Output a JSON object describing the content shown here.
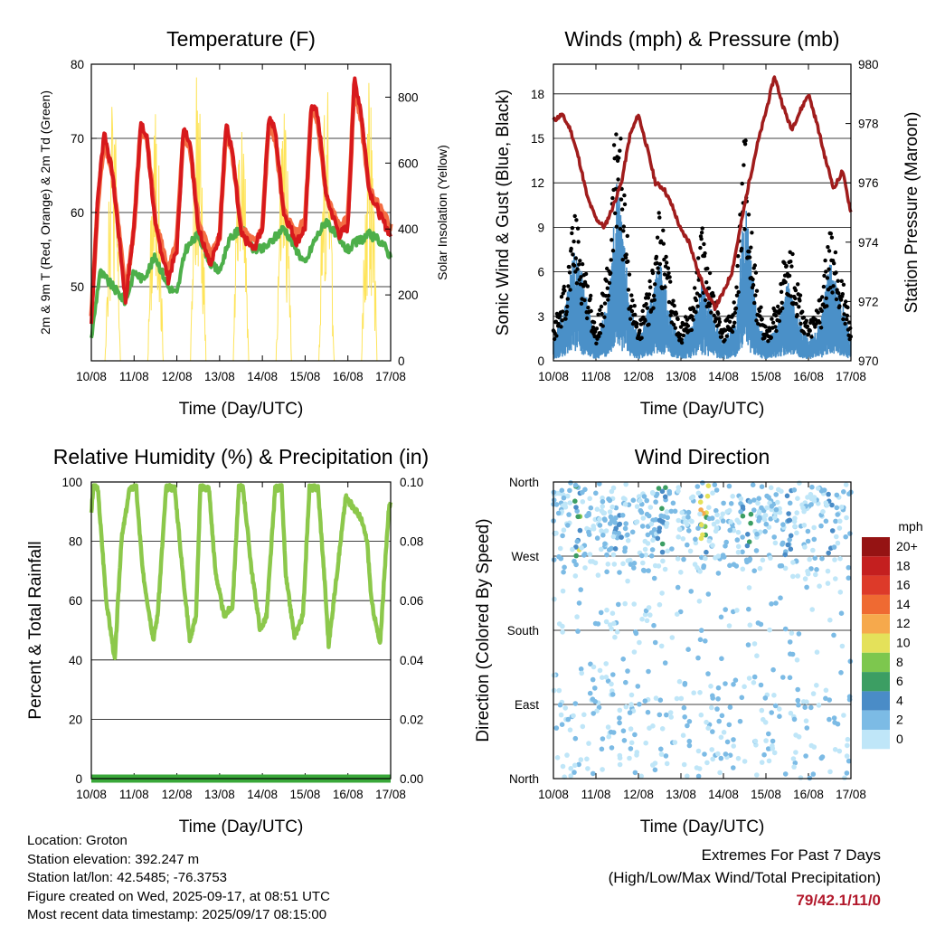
{
  "chart_data": [
    {
      "type": "line",
      "title": "Temperature (F)",
      "xlabel": "Time (Day/UTC)",
      "ylabel": "2m & 9m T (Red, Orange) & 2m Td (Green)",
      "y2label": "Solar Insolation (Yellow)",
      "x_ticks": [
        "10/08",
        "11/08",
        "12/08",
        "13/08",
        "14/08",
        "15/08",
        "16/08",
        "17/08"
      ],
      "ylim": [
        40,
        80
      ],
      "y_ticks": [
        50,
        60,
        70,
        80
      ],
      "y2lim": [
        0,
        900
      ],
      "y2_ticks": [
        0,
        200,
        400,
        600,
        800
      ],
      "colors": {
        "t2m": "#d7191c",
        "t9m": "#f46d43",
        "td2m": "#4daf4a",
        "solar": "#fee45a"
      },
      "series": [
        {
          "name": "2m T",
          "x": [
            0,
            0.15,
            0.3,
            0.5,
            0.8,
            1.0,
            1.15,
            1.3,
            1.5,
            1.8,
            2.0,
            2.15,
            2.3,
            2.5,
            2.8,
            3.0,
            3.15,
            3.3,
            3.5,
            3.8,
            4.0,
            4.15,
            4.3,
            4.5,
            4.8,
            5.0,
            5.15,
            5.3,
            5.5,
            5.8,
            6.0,
            6.15,
            6.3,
            6.5,
            6.8,
            7.0
          ],
          "values": [
            45,
            62,
            71,
            65,
            48,
            58,
            72,
            70,
            58,
            51,
            55,
            71,
            70,
            58,
            53,
            57,
            72,
            68,
            57,
            55,
            58,
            73,
            71,
            60,
            56,
            58,
            75,
            73,
            62,
            57,
            58,
            78,
            74,
            63,
            59,
            57
          ]
        },
        {
          "name": "9m T",
          "x": [
            0,
            0.15,
            0.3,
            0.5,
            0.8,
            1.0,
            1.15,
            1.3,
            1.5,
            1.8,
            2.0,
            2.15,
            2.3,
            2.5,
            2.8,
            3.0,
            3.15,
            3.3,
            3.5,
            3.8,
            4.0,
            4.15,
            4.3,
            4.5,
            4.8,
            5.0,
            5.15,
            5.3,
            5.5,
            5.8,
            6.0,
            6.15,
            6.3,
            6.5,
            6.8,
            7.0
          ],
          "values": [
            46,
            61,
            70,
            65,
            49,
            58,
            71,
            70,
            59,
            52,
            56,
            70,
            69,
            59,
            54,
            57,
            71,
            68,
            58,
            56,
            58,
            72,
            70,
            60,
            57,
            59,
            74,
            72,
            62,
            58,
            59,
            77,
            73,
            63,
            60,
            58
          ]
        },
        {
          "name": "2m Td",
          "x": [
            0,
            0.2,
            0.5,
            0.8,
            1.0,
            1.2,
            1.5,
            1.8,
            2.0,
            2.2,
            2.5,
            2.8,
            3.0,
            3.2,
            3.5,
            3.8,
            4.0,
            4.2,
            4.5,
            4.8,
            5.0,
            5.2,
            5.5,
            5.8,
            6.0,
            6.2,
            6.5,
            6.8,
            7.0
          ],
          "values": [
            43,
            52,
            50,
            48,
            52,
            51,
            54,
            50,
            49,
            55,
            57,
            53,
            52,
            56,
            58,
            55,
            55,
            56,
            58,
            55,
            53,
            56,
            59,
            56,
            55,
            56,
            57,
            56,
            54
          ]
        },
        {
          "name": "Solar Insolation",
          "x": [
            0,
            0.35,
            0.5,
            0.65,
            0.85,
            1.0,
            1.35,
            1.5,
            1.65,
            1.85,
            2.0,
            2.35,
            2.5,
            2.65,
            2.85,
            3.0,
            3.35,
            3.5,
            3.65,
            3.85,
            4.0,
            4.35,
            4.5,
            4.65,
            4.85,
            5.0,
            5.35,
            5.5,
            5.65,
            5.85,
            6.0,
            6.35,
            6.5,
            6.65,
            6.85,
            7.0
          ],
          "values": [
            0,
            0,
            780,
            0,
            0,
            0,
            0,
            720,
            0,
            0,
            0,
            0,
            850,
            0,
            0,
            0,
            0,
            780,
            0,
            0,
            0,
            0,
            760,
            0,
            0,
            0,
            0,
            800,
            0,
            0,
            0,
            0,
            800,
            0,
            0,
            0
          ]
        }
      ]
    },
    {
      "type": "scatter",
      "title": "Winds (mph) & Pressure (mb)",
      "xlabel": "Time (Day/UTC)",
      "ylabel": "Sonic Wind & Gust (Blue, Black)",
      "y2label": "Station Pressure (Maroon)",
      "x_ticks": [
        "10/08",
        "11/08",
        "12/08",
        "13/08",
        "14/08",
        "15/08",
        "16/08",
        "17/08"
      ],
      "ylim": [
        0,
        20
      ],
      "y_ticks": [
        0,
        3,
        6,
        9,
        12,
        15,
        18
      ],
      "y2lim": [
        970,
        980
      ],
      "y2_ticks": [
        970,
        972,
        974,
        976,
        978,
        980
      ],
      "colors": {
        "wind": "#4a90c8",
        "gust": "#000000",
        "pressure": "#a01c1c"
      },
      "series": [
        {
          "name": "Sonic Wind",
          "x": [
            0,
            0.3,
            0.5,
            0.8,
            1.0,
            1.3,
            1.5,
            1.8,
            2.0,
            2.3,
            2.5,
            2.8,
            3.0,
            3.3,
            3.5,
            3.8,
            4.0,
            4.3,
            4.5,
            4.8,
            5.0,
            5.3,
            5.5,
            5.8,
            6.0,
            6.3,
            6.5,
            6.8,
            7.0
          ],
          "values": [
            1,
            3,
            6,
            3,
            1,
            3,
            9,
            3,
            1,
            3,
            5,
            2,
            1,
            2,
            4,
            2,
            1,
            2,
            8,
            2,
            1,
            2,
            4,
            2,
            1,
            2,
            5,
            3,
            1
          ]
        },
        {
          "name": "Gust",
          "x": [
            0,
            0.3,
            0.5,
            0.8,
            1.0,
            1.3,
            1.5,
            1.8,
            2.0,
            2.3,
            2.5,
            2.8,
            3.0,
            3.3,
            3.5,
            3.8,
            4.0,
            4.3,
            4.5,
            4.8,
            5.0,
            5.3,
            5.5,
            5.8,
            6.0,
            6.3,
            6.5,
            6.8,
            7.0
          ],
          "values": [
            2,
            5,
            9,
            5,
            2,
            6,
            17,
            5,
            2,
            5,
            9,
            4,
            2,
            4,
            8,
            4,
            2,
            4,
            14,
            4,
            2,
            4,
            8,
            4,
            2,
            4,
            8,
            5,
            2
          ]
        },
        {
          "name": "Station Pressure",
          "x": [
            0,
            0.2,
            0.4,
            0.6,
            0.8,
            1.0,
            1.2,
            1.4,
            1.6,
            1.8,
            2.0,
            2.2,
            2.4,
            2.6,
            2.8,
            3.0,
            3.2,
            3.4,
            3.6,
            3.8,
            4.0,
            4.2,
            4.4,
            4.6,
            4.8,
            5.0,
            5.2,
            5.4,
            5.6,
            5.8,
            6.0,
            6.2,
            6.4,
            6.6,
            6.8,
            7.0
          ],
          "values": [
            978.1,
            978.3,
            977.8,
            976.8,
            975.5,
            974.8,
            974.5,
            975.2,
            976.0,
            977.6,
            978.3,
            977.2,
            976.0,
            975.8,
            975.2,
            974.4,
            974.0,
            973.0,
            972.3,
            971.8,
            972.3,
            973.0,
            974.5,
            976.0,
            977.3,
            978.4,
            979.6,
            978.6,
            977.8,
            978.4,
            979.0,
            978.0,
            976.8,
            975.8,
            976.4,
            975.0
          ]
        }
      ]
    },
    {
      "type": "line",
      "title": "Relative Humidity (%) & Precipitation (in)",
      "xlabel": "Time (Day/UTC)",
      "ylabel": "Percent & Total Rainfall",
      "x_ticks": [
        "10/08",
        "11/08",
        "12/08",
        "13/08",
        "14/08",
        "15/08",
        "16/08",
        "17/08"
      ],
      "ylim": [
        0,
        100
      ],
      "y_ticks": [
        0,
        20,
        40,
        60,
        80,
        100
      ],
      "y2lim": [
        0,
        0.1
      ],
      "y2_ticks": [
        "0.00",
        "0.02",
        "0.04",
        "0.06",
        "0.08",
        "0.10"
      ],
      "colors": {
        "rh": "#8cc84b",
        "precip": "#3aa83a"
      },
      "series": [
        {
          "name": "Relative Humidity",
          "x": [
            0,
            0.05,
            0.15,
            0.35,
            0.55,
            0.7,
            0.9,
            1.05,
            1.2,
            1.45,
            1.55,
            1.75,
            1.95,
            2.1,
            2.3,
            2.45,
            2.55,
            2.75,
            2.9,
            3.1,
            3.3,
            3.45,
            3.55,
            3.75,
            3.95,
            4.1,
            4.3,
            4.45,
            4.55,
            4.75,
            4.95,
            5.1,
            5.3,
            5.45,
            5.55,
            5.75,
            5.95,
            6.1,
            6.3,
            6.45,
            6.55,
            6.75,
            6.95,
            7.0
          ],
          "values": [
            90,
            98,
            98,
            60,
            40,
            80,
            98,
            98,
            70,
            47,
            55,
            98,
            98,
            75,
            47,
            55,
            98,
            98,
            70,
            55,
            58,
            98,
            98,
            70,
            50,
            55,
            98,
            98,
            68,
            48,
            55,
            98,
            98,
            68,
            45,
            70,
            95,
            92,
            88,
            80,
            60,
            45,
            90,
            94
          ]
        },
        {
          "name": "Precipitation",
          "x": [
            0,
            7
          ],
          "values": [
            0,
            0
          ]
        }
      ]
    },
    {
      "type": "scatter",
      "title": "Wind Direction",
      "xlabel": "Time (Day/UTC)",
      "ylabel": "Direction (Colored By Speed)",
      "x_ticks": [
        "10/08",
        "11/08",
        "12/08",
        "13/08",
        "14/08",
        "15/08",
        "16/08",
        "17/08"
      ],
      "y_ticks": [
        "North",
        "East",
        "South",
        "West",
        "North"
      ],
      "ylim": [
        0,
        360
      ],
      "colorbar": {
        "title": "mph",
        "labels": [
          "0",
          "2",
          "4",
          "6",
          "8",
          "10",
          "12",
          "14",
          "16",
          "18",
          "20+"
        ],
        "colors": [
          "#bfe6f8",
          "#7cbbe5",
          "#4a8cc7",
          "#3c9e63",
          "#7dc74e",
          "#e4e15a",
          "#f6a94c",
          "#ef6a32",
          "#dd3a29",
          "#c41f1f",
          "#951313"
        ]
      }
    }
  ],
  "footer": {
    "location": "Location: Groton",
    "elevation": "Station elevation: 392.247 m",
    "latlon": "Station lat/lon: 42.5485; -76.3753",
    "created": "Figure created on Wed, 2025-09-17, at 08:51 UTC",
    "recent": "Most recent data timestamp: 2025/09/17 08:15:00",
    "extremes_title": "Extremes For Past 7 Days",
    "extremes_subtitle": "(High/Low/Max Wind/Total Precipitation)",
    "extremes_values": "79/42.1/11/0"
  }
}
